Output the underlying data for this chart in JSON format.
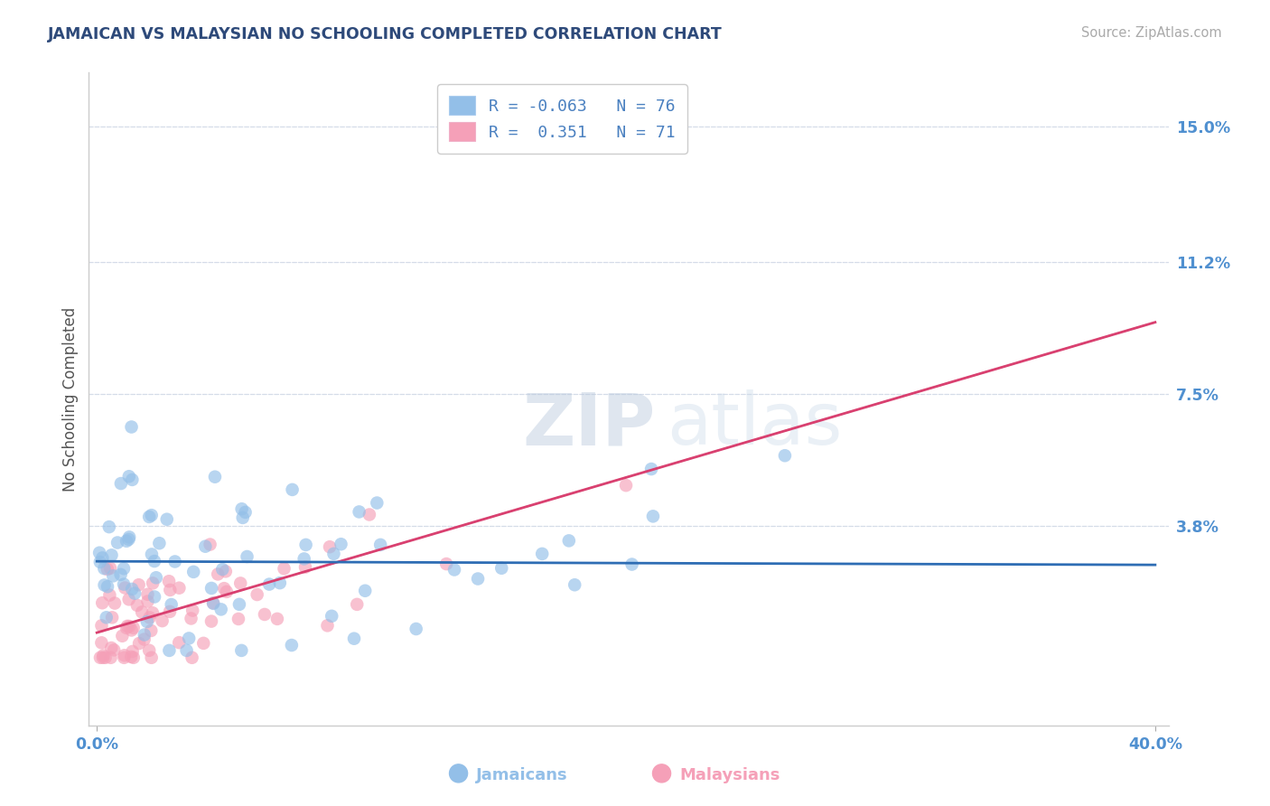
{
  "title": "JAMAICAN VS MALAYSIAN NO SCHOOLING COMPLETED CORRELATION CHART",
  "source": "Source: ZipAtlas.com",
  "ylabel": "No Schooling Completed",
  "xlim": [
    -0.003,
    0.405
  ],
  "ylim": [
    -0.018,
    0.165
  ],
  "xtick_positions": [
    0.0,
    0.4
  ],
  "xtick_labels": [
    "0.0%",
    "40.0%"
  ],
  "ytick_positions": [
    0.038,
    0.075,
    0.112,
    0.15
  ],
  "ytick_labels": [
    "3.8%",
    "7.5%",
    "11.2%",
    "15.0%"
  ],
  "jamaicans_R": -0.063,
  "jamaicans_N": 76,
  "malaysians_R": 0.351,
  "malaysians_N": 71,
  "jamaican_dot_color": "#93bfe8",
  "malaysian_dot_color": "#f5a0b8",
  "jamaican_line_color": "#2e6db4",
  "malaysian_line_color": "#d94070",
  "malaysian_dashed_color": "#d89090",
  "title_color": "#2e4a7a",
  "axis_color": "#5090d0",
  "grid_color": "#d5dce8",
  "watermark_color": "#c8d8ee",
  "legend_text_color": "#4a80c0",
  "background_color": "#ffffff",
  "jamaican_line_y0": 0.028,
  "jamaican_line_y1": 0.027,
  "malaysian_line_y0": 0.008,
  "malaysian_line_y1": 0.095
}
